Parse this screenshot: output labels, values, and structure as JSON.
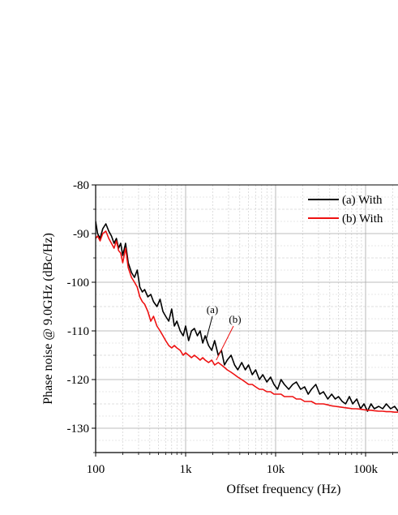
{
  "chart_data": {
    "type": "line",
    "title": "",
    "xlabel": "Offset frequency (Hz)",
    "ylabel": "Phase noise @ 9.0GHz (dBc/Hz)",
    "xscale": "log",
    "xlim": [
      100,
      230000
    ],
    "ylim": [
      -135,
      -80
    ],
    "grid": true,
    "legend_position": "top-right",
    "x_ticks": [
      100,
      1000,
      10000,
      100000
    ],
    "x_tick_labels": [
      "100",
      "1k",
      "10k",
      "100k"
    ],
    "y_ticks": [
      -80,
      -90,
      -100,
      -110,
      -120,
      -130
    ],
    "y_tick_labels": [
      "-80",
      "-90",
      "-100",
      "-110",
      "-120",
      "-130"
    ],
    "series": [
      {
        "name": "(a) With",
        "color": "#000000",
        "x": [
          100,
          105,
          112,
          120,
          130,
          140,
          150,
          160,
          170,
          180,
          190,
          200,
          215,
          230,
          250,
          270,
          290,
          310,
          330,
          350,
          380,
          410,
          440,
          480,
          520,
          560,
          600,
          650,
          700,
          750,
          800,
          870,
          940,
          1000,
          1080,
          1160,
          1250,
          1350,
          1450,
          1550,
          1650,
          1800,
          1950,
          2100,
          2300,
          2500,
          2700,
          2900,
          3200,
          3500,
          3800,
          4200,
          4600,
          5000,
          5500,
          6000,
          6600,
          7200,
          8000,
          8800,
          9600,
          10500,
          11500,
          12500,
          14000,
          15500,
          17000,
          19000,
          21000,
          23000,
          25000,
          28000,
          31000,
          34000,
          38000,
          42000,
          46000,
          50000,
          55000,
          60000,
          66000,
          72000,
          80000,
          88000,
          96000,
          105000,
          115000,
          125000,
          140000,
          155000,
          170000,
          190000,
          210000,
          230000
        ],
        "y": [
          -87.5,
          -90,
          -91,
          -89,
          -88,
          -89.5,
          -90.5,
          -92,
          -91,
          -93,
          -92,
          -94.5,
          -92,
          -96,
          -98,
          -99,
          -97.5,
          -101,
          -102,
          -101.5,
          -103,
          -102.5,
          -104,
          -105,
          -103.5,
          -106,
          -107,
          -108,
          -105.5,
          -109,
          -108,
          -110,
          -111,
          -109,
          -112,
          -110,
          -109.5,
          -111,
          -110,
          -112.5,
          -111,
          -113,
          -114,
          -112,
          -115,
          -114,
          -117,
          -116,
          -115,
          -117,
          -118,
          -116.5,
          -118,
          -117,
          -119,
          -118,
          -120,
          -119,
          -120.5,
          -119.5,
          -121,
          -122,
          -120,
          -121,
          -122,
          -121,
          -120.5,
          -122,
          -121.5,
          -123,
          -122,
          -121,
          -123,
          -122.5,
          -124,
          -123,
          -124,
          -123.5,
          -124.5,
          -125,
          -123.5,
          -125,
          -124,
          -126,
          -125,
          -126.5,
          -125,
          -126,
          -125.5,
          -126,
          -125,
          -126,
          -125.5,
          -126.5
        ]
      },
      {
        "name": "(b) With",
        "color": "#ee1111",
        "x": [
          100,
          105,
          112,
          120,
          130,
          140,
          150,
          160,
          170,
          180,
          190,
          200,
          215,
          230,
          250,
          270,
          290,
          310,
          330,
          350,
          380,
          410,
          440,
          480,
          520,
          560,
          600,
          650,
          700,
          750,
          800,
          870,
          940,
          1000,
          1080,
          1160,
          1250,
          1350,
          1450,
          1550,
          1650,
          1800,
          1950,
          2100,
          2300,
          2500,
          2700,
          2900,
          3200,
          3500,
          3800,
          4200,
          4600,
          5000,
          5500,
          6000,
          6600,
          7200,
          8000,
          8800,
          9600,
          10500,
          11500,
          12500,
          14000,
          15500,
          17000,
          19000,
          21000,
          23000,
          25000,
          28000,
          31000,
          34000,
          38000,
          42000,
          46000,
          50000,
          55000,
          60000,
          66000,
          72000,
          80000,
          88000,
          96000,
          105000,
          115000,
          125000,
          140000,
          155000,
          170000,
          190000,
          210000,
          230000
        ],
        "y": [
          -91,
          -90.5,
          -91.5,
          -90,
          -89.5,
          -91,
          -92,
          -93,
          -91.5,
          -93.5,
          -94,
          -96,
          -93,
          -97,
          -99,
          -100,
          -101,
          -103,
          -104,
          -104.5,
          -106,
          -108,
          -107,
          -109,
          -110,
          -111,
          -112,
          -113,
          -113.5,
          -113,
          -113.5,
          -114,
          -115,
          -114.5,
          -115,
          -115.5,
          -115,
          -115.5,
          -116,
          -115.5,
          -116,
          -116.5,
          -116,
          -117,
          -116.5,
          -117,
          -117.5,
          -118,
          -118.5,
          -119,
          -119.5,
          -120,
          -120.5,
          -121,
          -121,
          -121.5,
          -122,
          -122,
          -122.5,
          -122.5,
          -123,
          -123,
          -123,
          -123.5,
          -123.5,
          -123.5,
          -124,
          -124,
          -124.5,
          -124.5,
          -124.5,
          -125,
          -125,
          -125,
          -125.2,
          -125.4,
          -125.5,
          -125.6,
          -125.7,
          -125.8,
          -125.9,
          -126,
          -126,
          -126.1,
          -126.2,
          -126.3,
          -126.3,
          -126.4,
          -126.5,
          -126.5,
          -126.6,
          -126.6,
          -126.7,
          -126.7
        ]
      }
    ],
    "annotations": [
      {
        "label": "(a)",
        "x": 1700,
        "y": -111
      },
      {
        "label": "(b)",
        "x": 2100,
        "y": -115
      }
    ]
  }
}
